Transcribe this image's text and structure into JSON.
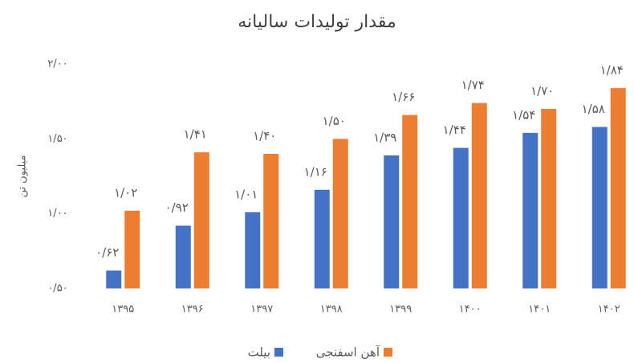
{
  "chart_data": {
    "type": "bar",
    "title": "مقدار تولیدات سالیانه",
    "y_label": "میلیون تن",
    "categories": [
      "۱۳۹۵",
      "۱۳۹۶",
      "۱۳۹۷",
      "۱۳۹۸",
      "۱۳۹۹",
      "۱۴۰۰",
      "۱۴۰۱",
      "۱۴۰۲"
    ],
    "series": [
      {
        "name": "بیلت",
        "color": "#4472c4",
        "values": [
          0.62,
          0.92,
          1.01,
          1.16,
          1.39,
          1.44,
          1.54,
          1.58
        ],
        "value_labels": [
          "۰/۶۲",
          "۰/۹۲",
          "۱/۰۱",
          "۱/۱۶",
          "۱/۳۹",
          "۱/۴۴",
          "۱/۵۴",
          "۱/۵۸"
        ]
      },
      {
        "name": "آهن اسفنجی",
        "color": "#ed7d31",
        "values": [
          1.02,
          1.41,
          1.4,
          1.5,
          1.66,
          1.74,
          1.7,
          1.84
        ],
        "value_labels": [
          "۱/۰۲",
          "۱/۴۱",
          "۱/۴۰",
          "۱/۵۰",
          "۱/۶۶",
          "۱/۷۴",
          "۱/۷۰",
          "۱/۸۴"
        ]
      }
    ],
    "ylim": [
      0.5,
      2.0
    ],
    "yticks": [
      {
        "value": 0.5,
        "label": "۰/۵۰"
      },
      {
        "value": 1.0,
        "label": "۱/۰۰"
      },
      {
        "value": 1.5,
        "label": "۱/۵۰"
      },
      {
        "value": 2.0,
        "label": "۲/۰۰"
      }
    ],
    "grid": false,
    "legend": "bottom"
  }
}
